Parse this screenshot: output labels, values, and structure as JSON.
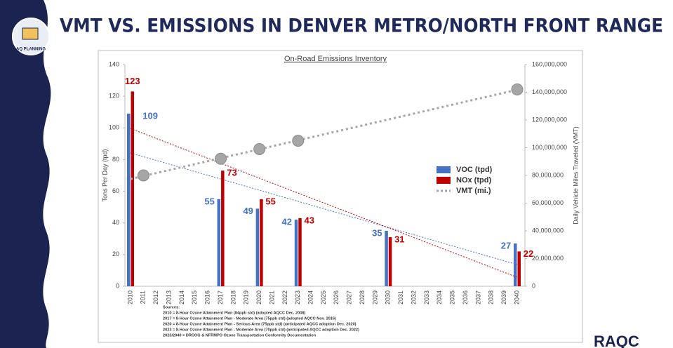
{
  "header": {
    "title": "VMT VS. EMISSIONS IN DENVER METRO/NORTH FRONT RANGE",
    "logo_text": "AQ PLANNING",
    "corner_logo": "RAQC"
  },
  "chart_data": {
    "type": "bar",
    "title": "On-Road Emissions Inventory",
    "y_label": "Tons Per Day (tpd)",
    "y2_label": "Daily Vehicle Miles Traveled (VMT)",
    "categories": [
      "2010",
      "2011",
      "2012",
      "2013",
      "2014",
      "2015",
      "2016",
      "2017",
      "2018",
      "2019",
      "2020",
      "2021",
      "2022",
      "2023",
      "2024",
      "2025",
      "2026",
      "2027",
      "2028",
      "2029",
      "2030",
      "2031",
      "2032",
      "2033",
      "2034",
      "2035",
      "2036",
      "2037",
      "2038",
      "2039",
      "2040"
    ],
    "series": [
      {
        "name": "VOC (tpd)",
        "color": "#4472c4",
        "values": [
          109,
          null,
          null,
          null,
          null,
          null,
          null,
          55,
          null,
          null,
          49,
          null,
          null,
          42,
          null,
          null,
          null,
          null,
          null,
          null,
          35,
          null,
          null,
          null,
          null,
          null,
          null,
          null,
          null,
          null,
          27
        ]
      },
      {
        "name": "NOx (tpd)",
        "color": "#c00000",
        "values": [
          123,
          null,
          null,
          null,
          null,
          null,
          null,
          73,
          null,
          null,
          55,
          null,
          null,
          43,
          null,
          null,
          null,
          null,
          null,
          null,
          31,
          null,
          null,
          null,
          null,
          null,
          null,
          null,
          null,
          null,
          22
        ]
      },
      {
        "name": "VMT (mi.)",
        "color": "#a6a6a6",
        "axis": "y2",
        "type": "scatter",
        "values": [
          null,
          80000000,
          null,
          null,
          null,
          null,
          null,
          92000000,
          null,
          null,
          99000000,
          null,
          null,
          105000000,
          null,
          null,
          null,
          null,
          null,
          null,
          null,
          null,
          null,
          null,
          null,
          null,
          null,
          null,
          null,
          null,
          142000000
        ]
      }
    ],
    "ylim": [
      0,
      140
    ],
    "yticks": [
      0,
      20,
      40,
      60,
      80,
      100,
      120,
      140
    ],
    "y2lim": [
      0,
      160000000
    ],
    "y2ticks": [
      {
        "value": 0,
        "label": "0"
      },
      {
        "value": 20000000,
        "label": "20,000,000"
      },
      {
        "value": 40000000,
        "label": "40,000,000"
      },
      {
        "value": 60000000,
        "label": "60,000,000"
      },
      {
        "value": 80000000,
        "label": "80,000,000"
      },
      {
        "value": 100000000,
        "label": "100,000,000"
      },
      {
        "value": 120000000,
        "label": "120,000,000"
      },
      {
        "value": 140000000,
        "label": "140,000,000"
      },
      {
        "value": 160000000,
        "label": "160,000,000"
      }
    ],
    "trendlines": true,
    "grid": false,
    "sources": [
      "Sources:",
      "2010 = 8-Hour Ozone Attainment Plan (84ppb std) (adopted AQCC Dec. 2008)",
      "2017 = 8-Hour Ozone Attainment Plan - Moderate Area (75ppb std) (adopted AQCC Nov. 2016)",
      "2020 = 8-Hour Ozone Attainment Plan - Serious Area (75ppb std) (anticipated AQCC adoption Dec. 2020)",
      "2023 = 8-Hour Ozone Attainment Plan - Moderate Area (70ppb std) (anticipated AQCC adoption Dec. 2022)",
      "2023/2040 = DRCOG & NFRMPO Ozone Transportation Conformity Documentation"
    ]
  }
}
